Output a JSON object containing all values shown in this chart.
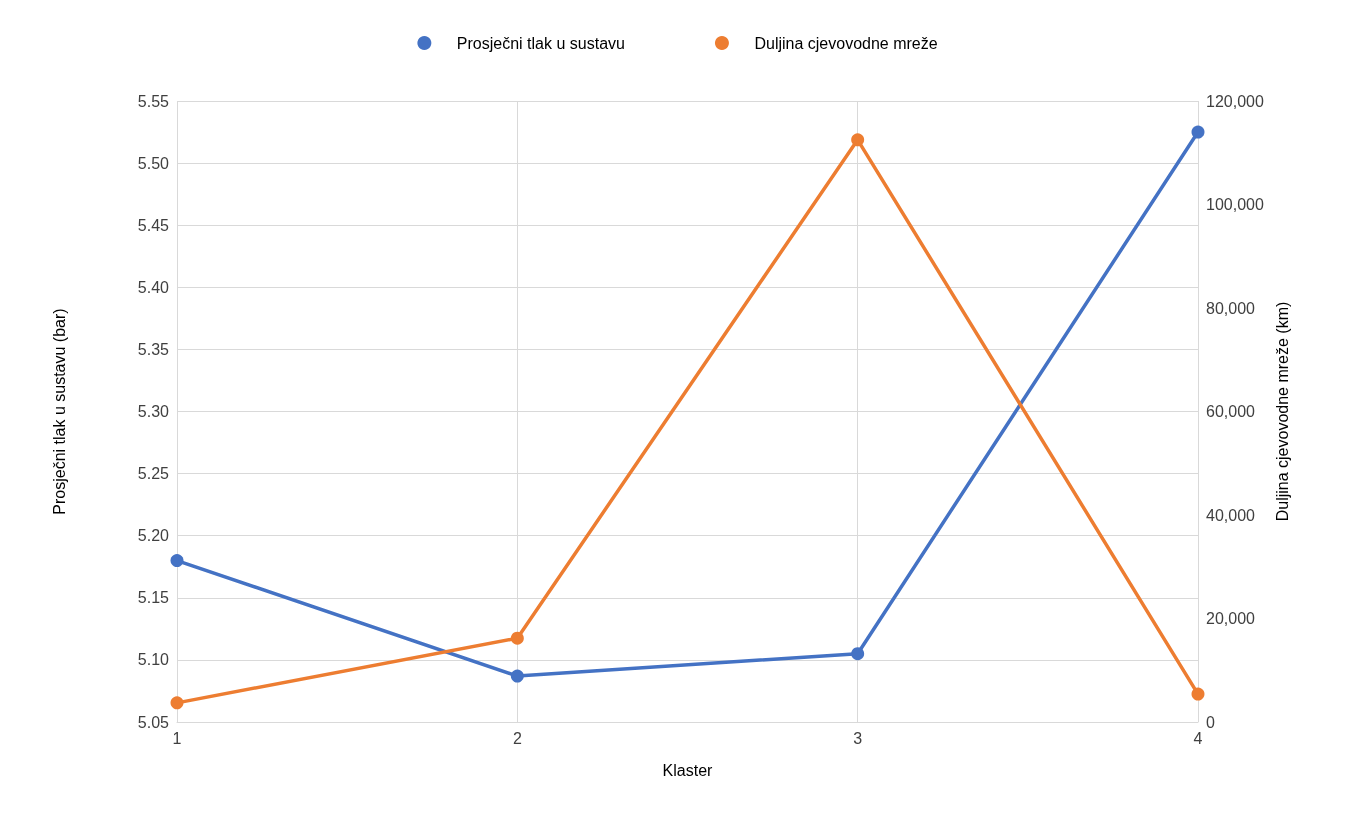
{
  "chart_data": {
    "type": "line",
    "xlabel": "Klaster",
    "ylabel": "Prosječni tlak u sustavu (bar)",
    "y2label": "Duljina cjevovodne mreže (km)",
    "x": [
      1,
      2,
      3,
      4
    ],
    "xlim": [
      1,
      4
    ],
    "xticks": [
      1,
      2,
      3,
      4
    ],
    "ylim": [
      5.05,
      5.55
    ],
    "yticks": [
      {
        "value": 5.05,
        "label": "5.05"
      },
      {
        "value": 5.1,
        "label": "5.10"
      },
      {
        "value": 5.15,
        "label": "5.15"
      },
      {
        "value": 5.2,
        "label": "5.20"
      },
      {
        "value": 5.25,
        "label": "5.25"
      },
      {
        "value": 5.3,
        "label": "5.30"
      },
      {
        "value": 5.35,
        "label": "5.35"
      },
      {
        "value": 5.4,
        "label": "5.40"
      },
      {
        "value": 5.45,
        "label": "5.45"
      },
      {
        "value": 5.5,
        "label": "5.50"
      },
      {
        "value": 5.55,
        "label": "5.55"
      }
    ],
    "y2lim": [
      0,
      120000
    ],
    "y2ticks": [
      0,
      {
        "value": 20000,
        "label": "20,000"
      },
      {
        "value": 40000,
        "label": "40,000"
      },
      {
        "value": 60000,
        "label": "60,000"
      },
      {
        "value": 80000,
        "label": "80,000"
      },
      {
        "value": 100000,
        "label": "100,000"
      },
      {
        "value": 120000,
        "label": "120,000"
      }
    ],
    "series": [
      {
        "name": "Prosječni tlak u sustavu",
        "color": "#4472c4",
        "values": [
          5.18,
          5.087,
          5.105,
          5.525
        ]
      },
      {
        "name": "Duljina cjevovodne mreže",
        "color": "#ed7d31",
        "values": [
          3700,
          16200,
          112500,
          5400
        ],
        "axis": "y2"
      }
    ],
    "grid": true,
    "legend": "top",
    "marker": "circle",
    "line_style": "solid"
  }
}
